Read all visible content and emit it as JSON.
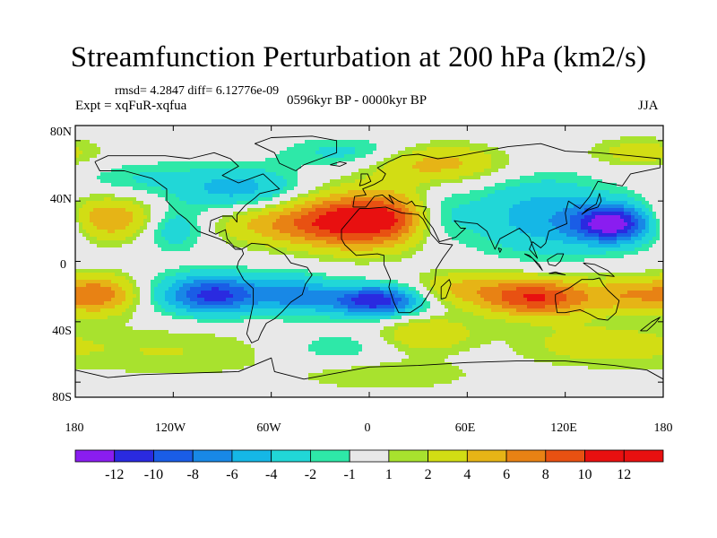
{
  "chart_data": {
    "type": "heatmap",
    "title": "Streamfunction Perturbation at 200 hPa (km2/s)",
    "stats": "rmsd= 4.2847 diff= 6.12776e-09",
    "experiment": "Expt = xqFuR-xqfua",
    "period": "0596kyr BP - 0000kyr BP",
    "season": "JJA",
    "xlim": [
      -180,
      180
    ],
    "ylim": [
      -90,
      90
    ],
    "lat_ticks": [
      "80N",
      "40N",
      "0",
      "40S",
      "80S"
    ],
    "lon_ticks": [
      "180",
      "120W",
      "60W",
      "0",
      "60E",
      "120E",
      "180"
    ],
    "colorbar": {
      "levels": [
        "-12",
        "-10",
        "-8",
        "-6",
        "-4",
        "-2",
        "-1",
        "1",
        "2",
        "4",
        "6",
        "8",
        "10",
        "12"
      ],
      "colors": [
        "#8a1df0",
        "#2a2ae0",
        "#1a5de6",
        "#1888e6",
        "#15b7e6",
        "#21d7d7",
        "#2ee8a8",
        "#e8e8e8",
        "#a8e22e",
        "#d2dd14",
        "#e6b416",
        "#e88214",
        "#e85112",
        "#e81010",
        "#e81010"
      ]
    },
    "field_centers": [
      {
        "lon": 150,
        "lat": 25,
        "value": -13,
        "sx": 18,
        "sy": 9
      },
      {
        "lon": 105,
        "lat": 30,
        "value": -5,
        "sx": 30,
        "sy": 18
      },
      {
        "lon": 40,
        "lat": 30,
        "value": -3,
        "sx": 14,
        "sy": 12
      },
      {
        "lon": -8,
        "lat": 27,
        "value": 11,
        "sx": 25,
        "sy": 13
      },
      {
        "lon": 20,
        "lat": 30,
        "value": 4,
        "sx": 15,
        "sy": 12
      },
      {
        "lon": -55,
        "lat": 25,
        "value": 5,
        "sx": 28,
        "sy": 10
      },
      {
        "lon": -160,
        "lat": 28,
        "value": 6,
        "sx": 22,
        "sy": 10
      },
      {
        "lon": -120,
        "lat": 22,
        "value": -4,
        "sx": 14,
        "sy": 10
      },
      {
        "lon": -80,
        "lat": 48,
        "value": -5,
        "sx": 26,
        "sy": 10
      },
      {
        "lon": -140,
        "lat": 55,
        "value": -2,
        "sx": 25,
        "sy": 8
      },
      {
        "lon": 40,
        "lat": 65,
        "value": 5,
        "sx": 30,
        "sy": 9
      },
      {
        "lon": -10,
        "lat": 72,
        "value": -3,
        "sx": 28,
        "sy": 7
      },
      {
        "lon": 165,
        "lat": 72,
        "value": 3,
        "sx": 22,
        "sy": 7
      },
      {
        "lon": -165,
        "lat": -22,
        "value": 7,
        "sx": 16,
        "sy": 9
      },
      {
        "lon": -95,
        "lat": -22,
        "value": -11,
        "sx": 22,
        "sy": 9
      },
      {
        "lon": 3,
        "lat": -26,
        "value": -12,
        "sx": 20,
        "sy": 7
      },
      {
        "lon": -45,
        "lat": -22,
        "value": -6,
        "sx": 16,
        "sy": 9
      },
      {
        "lon": 103,
        "lat": -24,
        "value": 10,
        "sx": 24,
        "sy": 9
      },
      {
        "lon": 160,
        "lat": -22,
        "value": 5,
        "sx": 18,
        "sy": 8
      },
      {
        "lon": 55,
        "lat": -18,
        "value": 4,
        "sx": 22,
        "sy": 8
      },
      {
        "lon": 35,
        "lat": -48,
        "value": 4,
        "sx": 20,
        "sy": 8
      },
      {
        "lon": 140,
        "lat": -55,
        "value": 3,
        "sx": 35,
        "sy": 10
      },
      {
        "lon": -120,
        "lat": -60,
        "value": 2,
        "sx": 45,
        "sy": 12
      },
      {
        "lon": -20,
        "lat": -58,
        "value": -2,
        "sx": 22,
        "sy": 8
      },
      {
        "lon": 10,
        "lat": -75,
        "value": 2,
        "sx": 40,
        "sy": 8
      }
    ]
  }
}
